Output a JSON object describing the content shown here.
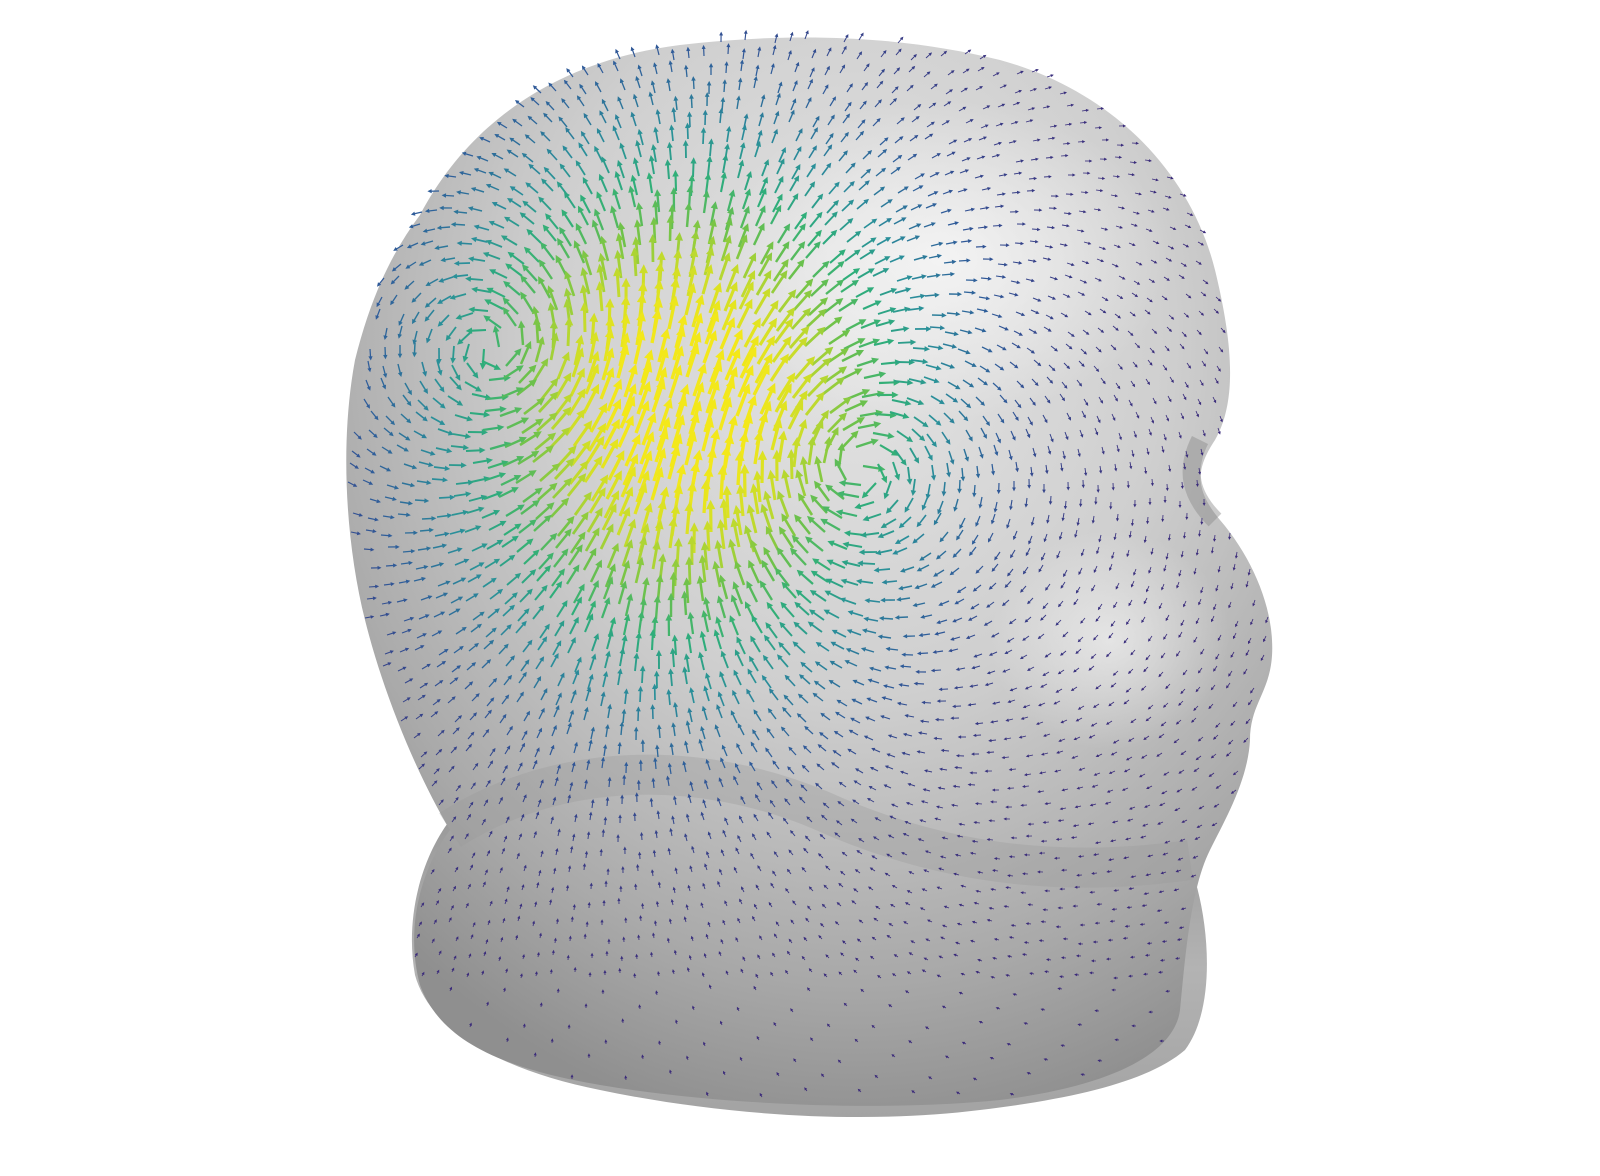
{
  "scene": {
    "subject": "head-surface",
    "view": "oblique-rear-right",
    "surface_color": "#c8c8c8",
    "background_color": "#ffffff",
    "colormap": [
      "#3b2a7a",
      "#2f5d9a",
      "#2a8f9a",
      "#2fae7a",
      "#6fc24a",
      "#c8dc2a",
      "#f3e81a"
    ]
  },
  "vector_field": {
    "kind": "tangential-current-arrows",
    "pattern": "double-vortex",
    "left_vortex_rotation": "clockwise",
    "right_vortex_rotation": "counter-clockwise",
    "peak_color": "#f3e81a",
    "low_color": "#3b2a7a"
  }
}
